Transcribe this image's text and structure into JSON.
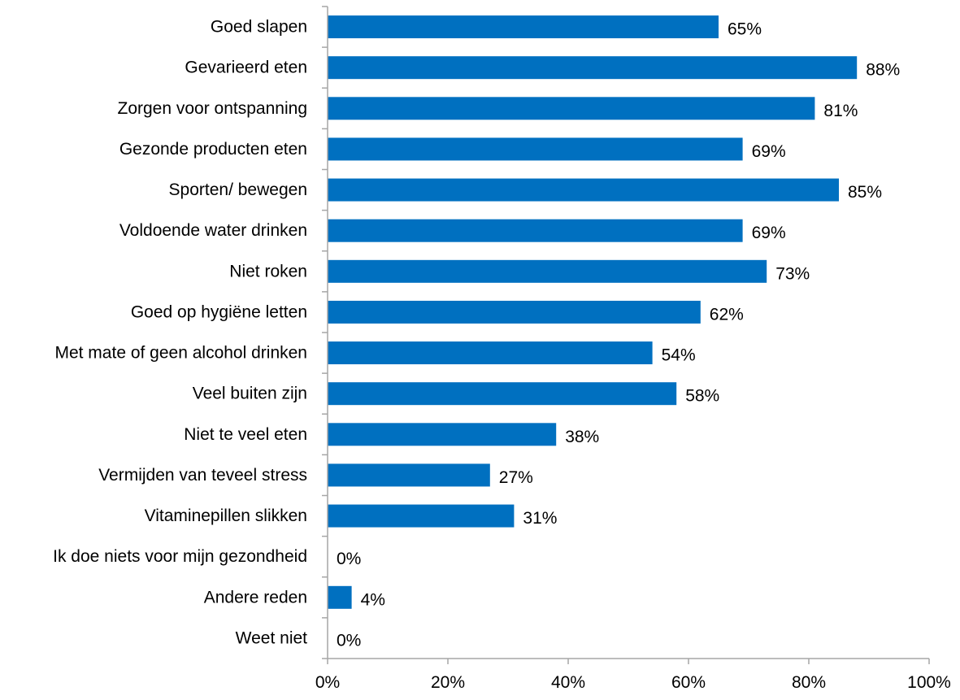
{
  "chart_data": {
    "type": "bar",
    "orientation": "horizontal",
    "title": "",
    "xlabel": "",
    "ylabel": "",
    "categories": [
      "Goed slapen",
      "Gevarieerd eten",
      "Zorgen voor ontspanning",
      "Gezonde producten eten",
      "Sporten/ bewegen",
      "Voldoende water drinken",
      "Niet roken",
      "Goed op hygiëne letten",
      "Met mate of geen alcohol drinken",
      "Veel buiten zijn",
      "Niet te veel eten",
      "Vermijden van teveel stress",
      "Vitaminepillen slikken",
      "Ik doe niets voor mijn gezondheid",
      "Andere reden",
      "Weet niet"
    ],
    "values": [
      65,
      88,
      81,
      69,
      85,
      69,
      73,
      62,
      54,
      58,
      38,
      27,
      31,
      0,
      4,
      0
    ],
    "value_labels": [
      "65%",
      "88%",
      "81%",
      "69%",
      "85%",
      "69%",
      "73%",
      "62%",
      "54%",
      "58%",
      "38%",
      "27%",
      "31%",
      "0%",
      "4%",
      "0%"
    ],
    "xlim": [
      0,
      100
    ],
    "x_ticks": [
      0,
      20,
      40,
      60,
      80,
      100
    ],
    "x_tick_labels": [
      "0%",
      "20%",
      "40%",
      "60%",
      "80%",
      "100%"
    ],
    "grid": false,
    "legend": "none",
    "bar_color": "#0070C0",
    "axis_color": "#A6A6A6",
    "text_color": "#000000"
  }
}
